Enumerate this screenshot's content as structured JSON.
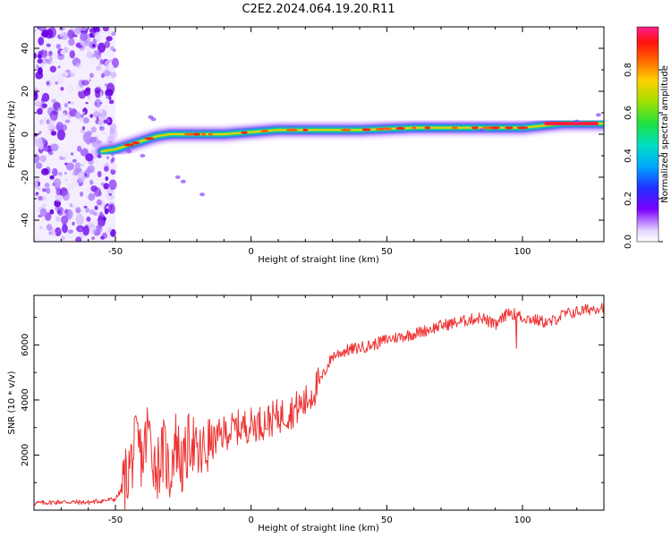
{
  "title": "C2E2.2024.064.19.20.R11",
  "chart_data": [
    {
      "type": "heatmap",
      "xlabel": "Height of straight line (km)",
      "ylabel": "Frequency (Hz)",
      "xlim": [
        -80,
        130
      ],
      "ylim": [
        -50,
        50
      ],
      "xticks": [
        -50,
        0,
        50,
        100
      ],
      "yticks": [
        -40,
        -20,
        0,
        20,
        40
      ],
      "colorbar": {
        "label": "Normalized spectral amplitude",
        "range": [
          0,
          1
        ],
        "ticks": [
          "0.0",
          "0.2",
          "0.4",
          "0.6",
          "0.8"
        ]
      },
      "ridge": {
        "x": [
          -55,
          -50,
          -45,
          -40,
          -35,
          -30,
          -20,
          -10,
          0,
          10,
          20,
          40,
          60,
          80,
          100,
          115,
          130
        ],
        "y": [
          -8,
          -7,
          -5,
          -3,
          -1,
          0,
          0,
          0,
          1,
          2,
          2,
          2,
          3,
          3,
          3,
          5,
          5
        ]
      },
      "noise_region_x": [
        -80,
        -50
      ]
    },
    {
      "type": "line",
      "xlabel": "Height of straight line (km)",
      "ylabel": "SNR (10 * v/v)",
      "xlim": [
        -80,
        130
      ],
      "ylim": [
        0,
        7800
      ],
      "xticks": [
        -50,
        0,
        50,
        100
      ],
      "yticks": [
        2000,
        4000,
        6000
      ],
      "series": [
        {
          "color": "#ee3333",
          "x": [
            -80,
            -70,
            -60,
            -50,
            -48,
            -45,
            -42,
            -40,
            -38,
            -35,
            -32,
            -30,
            -28,
            -25,
            -22,
            -20,
            -15,
            -10,
            -5,
            0,
            5,
            10,
            15,
            20,
            25,
            30,
            35,
            40,
            45,
            50,
            60,
            70,
            80,
            85,
            90,
            95,
            100,
            105,
            110,
            115,
            120,
            125,
            130
          ],
          "y": [
            250,
            300,
            280,
            400,
            700,
            1500,
            2500,
            1800,
            3000,
            1500,
            2200,
            1200,
            2600,
            1500,
            2800,
            1800,
            2400,
            2800,
            3000,
            3100,
            3200,
            3400,
            3600,
            3900,
            4600,
            5600,
            5800,
            5900,
            6000,
            6200,
            6400,
            6700,
            6900,
            7000,
            6700,
            7200,
            7000,
            6900,
            6800,
            7100,
            7200,
            7300,
            7400
          ]
        }
      ]
    }
  ]
}
